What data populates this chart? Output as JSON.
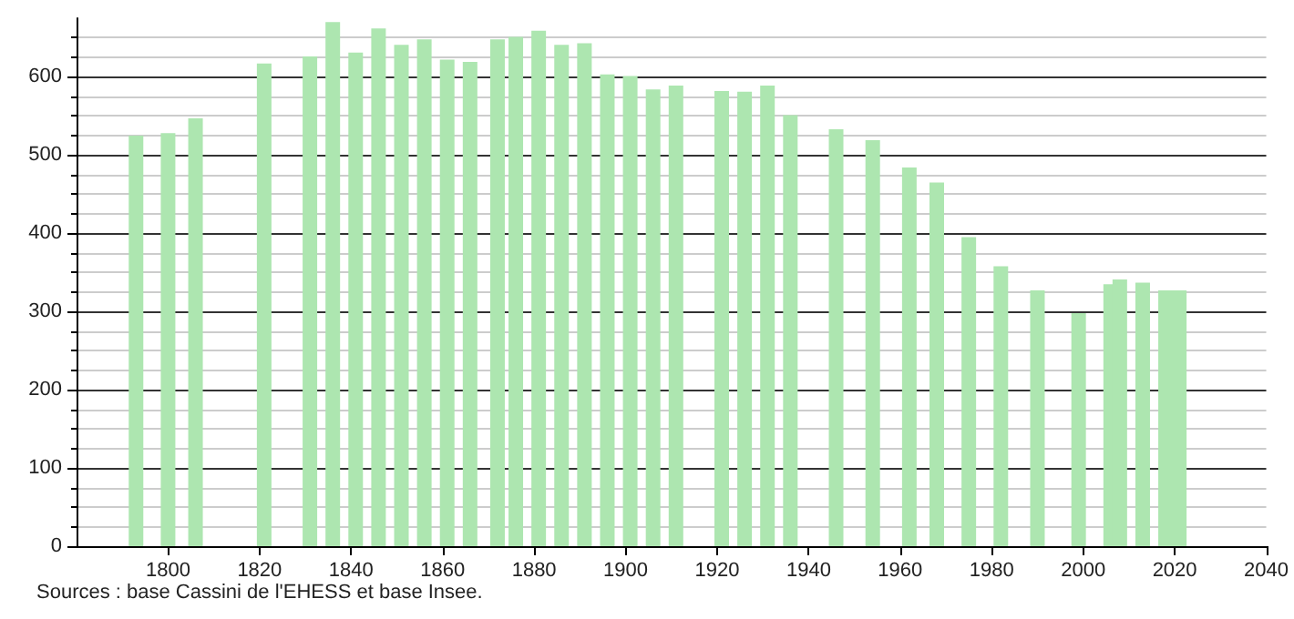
{
  "chart_data": {
    "type": "bar",
    "x": [
      1793,
      1800,
      1806,
      1821,
      1831,
      1836,
      1841,
      1846,
      1851,
      1856,
      1861,
      1866,
      1872,
      1876,
      1881,
      1886,
      1891,
      1896,
      1901,
      1906,
      1911,
      1921,
      1926,
      1931,
      1936,
      1946,
      1954,
      1962,
      1968,
      1975,
      1982,
      1990,
      1999,
      2006,
      2008,
      2013,
      2018,
      2021
    ],
    "values": [
      525,
      528,
      547,
      617,
      626,
      670,
      631,
      662,
      641,
      648,
      622,
      619,
      648,
      651,
      659,
      641,
      643,
      603,
      601,
      584,
      589,
      582,
      581,
      589,
      551,
      533,
      519,
      484,
      465,
      395,
      358,
      327,
      298,
      335,
      341,
      337,
      327,
      327
    ],
    "color": "#ade6b0",
    "xlim": [
      1780,
      2040
    ],
    "xticks": [
      1800,
      1820,
      1840,
      1860,
      1880,
      1900,
      1920,
      1940,
      1960,
      1980,
      2000,
      2020,
      2040
    ],
    "ylim": [
      0,
      675
    ],
    "yticks": [
      0,
      100,
      200,
      300,
      400,
      500,
      600
    ],
    "grid": "y",
    "annotations": [
      "Sources : base Cassini de l'EHESS et base Insee."
    ]
  }
}
